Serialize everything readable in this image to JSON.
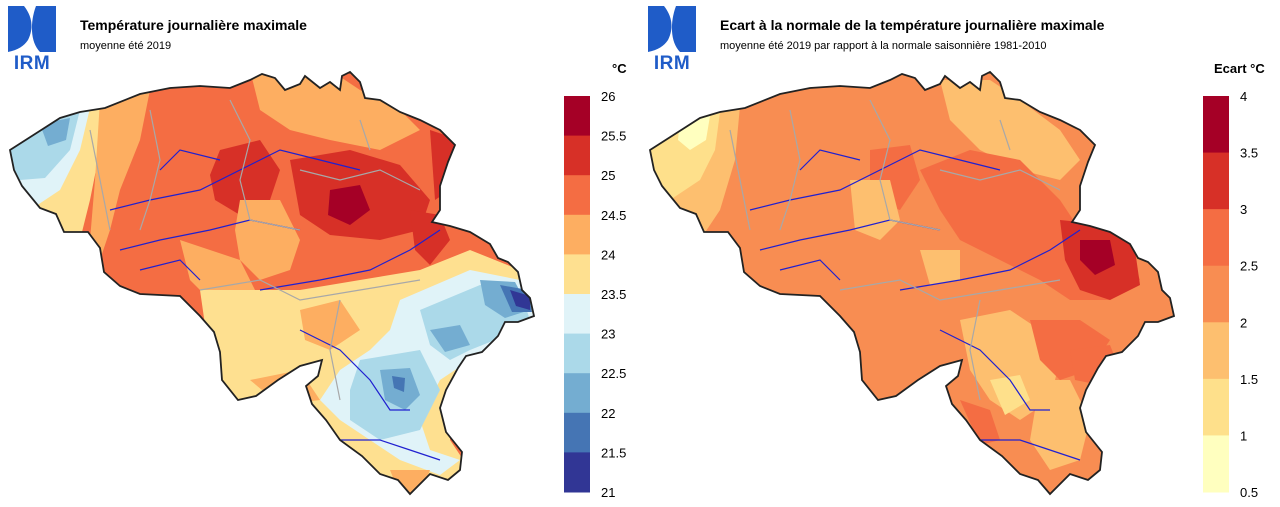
{
  "logo": {
    "text": "IRM",
    "color": "#1f5cc8"
  },
  "panels": [
    {
      "id": "left",
      "title": "Température journalière maximale",
      "subtitle": "moyenne été 2019",
      "legend": {
        "unit": "°C",
        "ticks": [
          "26",
          "25.5",
          "25",
          "24.5",
          "24",
          "23.5",
          "23",
          "22.5",
          "22",
          "21.5",
          "21"
        ],
        "colors": [
          "#a50026",
          "#d73027",
          "#f46d43",
          "#fdae61",
          "#fee090",
          "#e0f3f8",
          "#abd9e9",
          "#74add1",
          "#4575b4",
          "#313695"
        ]
      }
    },
    {
      "id": "right",
      "title": "Ecart à la normale de la température journalière maximale",
      "subtitle": "moyenne été 2019 par rapport à la normale saisonnière 1981-2010",
      "legend": {
        "unit": "Ecart  °C",
        "ticks": [
          "4",
          "3.5",
          "3",
          "2.5",
          "2",
          "1.5",
          "1",
          "0.5"
        ],
        "colors": [
          "#a50026",
          "#d73027",
          "#f46d43",
          "#f88d52",
          "#fdbf6f",
          "#fee08b",
          "#ffffbf"
        ]
      }
    }
  ]
}
